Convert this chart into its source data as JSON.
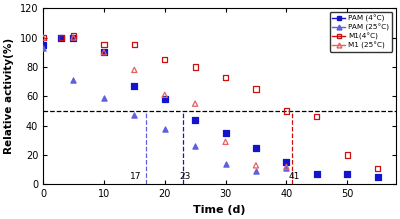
{
  "title": "",
  "xlabel": "Time (d)",
  "ylabel": "Relative activity(%)",
  "xlim": [
    0,
    58
  ],
  "ylim": [
    0,
    120
  ],
  "yticks": [
    0,
    20,
    40,
    60,
    80,
    100,
    120
  ],
  "xticks": [
    0,
    10,
    20,
    30,
    40,
    50
  ],
  "hline_y": 50,
  "vline_17": 17,
  "vline_23": 23,
  "vline_41": 41,
  "PAM_4_scatter_x": [
    0,
    3,
    5,
    10,
    15,
    20,
    25,
    30,
    35,
    40,
    45,
    50,
    55
  ],
  "PAM_4_scatter_y": [
    95,
    100,
    100,
    90,
    67,
    58,
    44,
    35,
    25,
    15,
    7,
    7,
    5
  ],
  "PAM_25_scatter_x": [
    0,
    5,
    10,
    15,
    20,
    25,
    30,
    35,
    40
  ],
  "PAM_25_scatter_y": [
    93,
    71,
    59,
    47,
    38,
    26,
    14,
    9,
    11
  ],
  "M1_4_scatter_x": [
    0,
    3,
    5,
    10,
    15,
    20,
    25,
    30,
    35,
    40,
    45,
    50,
    55
  ],
  "M1_4_scatter_y": [
    100,
    100,
    101,
    95,
    95,
    85,
    80,
    73,
    65,
    50,
    46,
    20,
    11
  ],
  "M1_25_scatter_x": [
    0,
    5,
    10,
    15,
    20,
    25,
    30,
    35,
    40
  ],
  "M1_25_scatter_y": [
    100,
    100,
    90,
    78,
    61,
    55,
    29,
    13,
    12
  ],
  "color_blue_dark": "#1414CC",
  "color_blue_light": "#6060DD",
  "color_red_dark": "#CC1010",
  "color_red_light": "#E86060",
  "legend_labels": [
    "PAM (4°C)",
    "PAM (25°C)",
    "M1(4°C)",
    "M1 (25°C)"
  ]
}
